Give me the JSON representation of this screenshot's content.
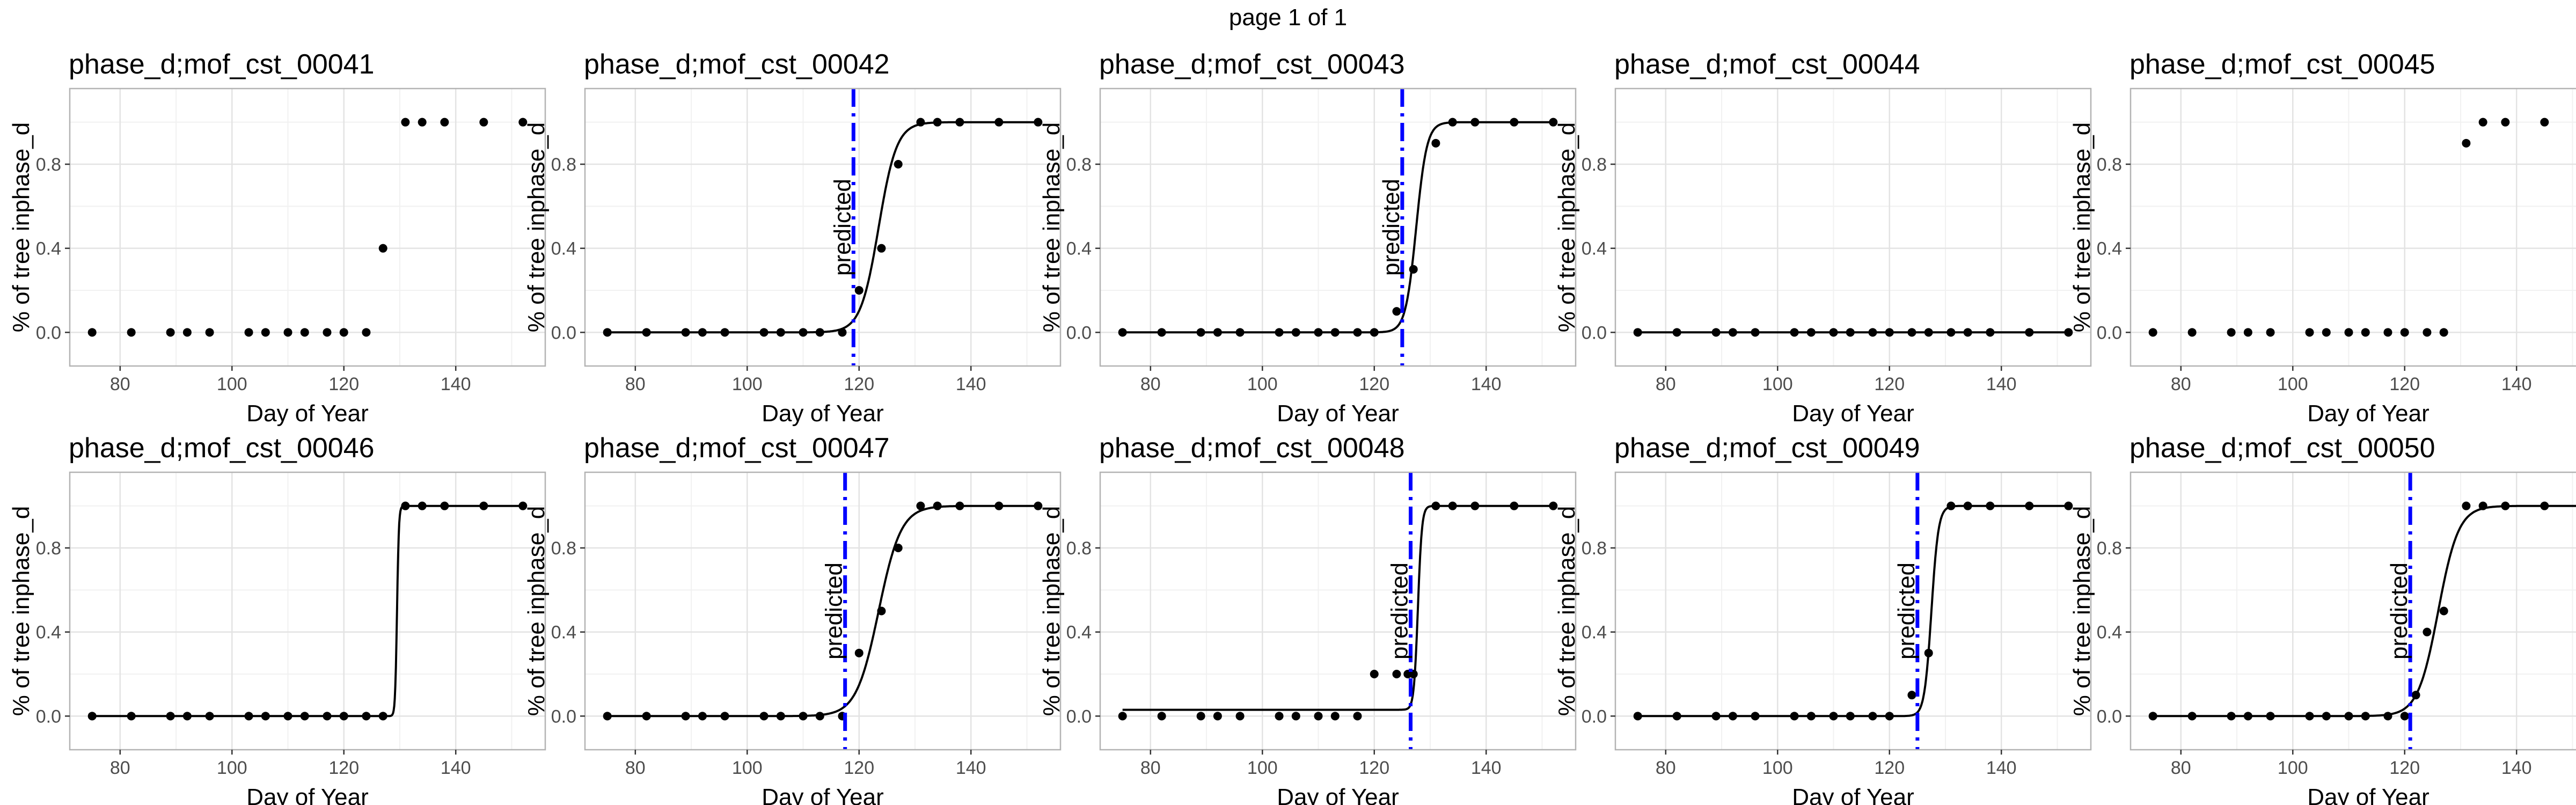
{
  "page_title": "page 1 of 1",
  "colors": {
    "predicted_line": "#0000ff",
    "curve": "#000000",
    "points": "#000000",
    "grid_major": "#e3e3e3",
    "grid_minor": "#f1f1f1",
    "panel_border": "#b3b3b3"
  },
  "chart_data": [
    {
      "type": "scatter",
      "title": "phase_d;mof_cst_00041",
      "xlabel": "Day of Year",
      "ylabel": "% of tree inphase_d",
      "xlim": [
        71,
        156
      ],
      "ylim": [
        -0.16,
        1.16
      ],
      "xticks": [
        80,
        100,
        120,
        140
      ],
      "yticks": [
        0.0,
        0.4,
        0.8
      ],
      "ytick_labels": [
        "0.0",
        "0.4",
        "0.8"
      ],
      "grid": true,
      "points": {
        "x": [
          75,
          82,
          89,
          92,
          96,
          103,
          106,
          110,
          113,
          117,
          120,
          124,
          127,
          131,
          134,
          138,
          145,
          152
        ],
        "y": [
          0,
          0,
          0,
          0,
          0,
          0,
          0,
          0,
          0,
          0,
          0,
          0,
          0.4,
          1,
          1,
          1,
          1,
          1
        ]
      },
      "curve": null,
      "predicted": null
    },
    {
      "type": "scatter",
      "title": "phase_d;mof_cst_00042",
      "xlabel": "Day of Year",
      "ylabel": "% of tree inphase_d",
      "xlim": [
        71,
        156
      ],
      "ylim": [
        -0.16,
        1.16
      ],
      "xticks": [
        80,
        100,
        120,
        140
      ],
      "yticks": [
        0.0,
        0.4,
        0.8
      ],
      "ytick_labels": [
        "0.0",
        "0.4",
        "0.8"
      ],
      "grid": true,
      "points": {
        "x": [
          75,
          82,
          89,
          92,
          96,
          103,
          106,
          110,
          113,
          117,
          120,
          124,
          127,
          131,
          134,
          138,
          145,
          152
        ],
        "y": [
          0,
          0,
          0,
          0,
          0,
          0,
          0,
          0,
          0,
          0,
          0.2,
          0.4,
          0.8,
          1,
          1,
          1,
          1,
          1
        ]
      },
      "curve": {
        "x0": 123.5,
        "k": 0.62,
        "lower": 0,
        "upper": 1,
        "from": 75,
        "to": 152
      },
      "predicted": {
        "x": 119,
        "label": "predicted"
      }
    },
    {
      "type": "scatter",
      "title": "phase_d;mof_cst_00043",
      "xlabel": "Day of Year",
      "ylabel": "% of tree inphase_d",
      "xlim": [
        71,
        156
      ],
      "ylim": [
        -0.16,
        1.16
      ],
      "xticks": [
        80,
        100,
        120,
        140
      ],
      "yticks": [
        0.0,
        0.4,
        0.8
      ],
      "ytick_labels": [
        "0.0",
        "0.4",
        "0.8"
      ],
      "grid": true,
      "points": {
        "x": [
          75,
          82,
          89,
          92,
          96,
          103,
          106,
          110,
          113,
          117,
          120,
          124,
          127,
          131,
          134,
          138,
          145,
          152
        ],
        "y": [
          0,
          0,
          0,
          0,
          0,
          0,
          0,
          0,
          0,
          0,
          0,
          0.1,
          0.3,
          0.9,
          1,
          1,
          1,
          1
        ]
      },
      "curve": {
        "x0": 127.5,
        "k": 1.05,
        "lower": 0,
        "upper": 1,
        "from": 75,
        "to": 152
      },
      "predicted": {
        "x": 125,
        "label": "predicted"
      }
    },
    {
      "type": "scatter",
      "title": "phase_d;mof_cst_00044",
      "xlabel": "Day of Year",
      "ylabel": "% of tree inphase_d",
      "xlim": [
        71,
        156
      ],
      "ylim": [
        -0.16,
        1.16
      ],
      "xticks": [
        80,
        100,
        120,
        140
      ],
      "yticks": [
        0.0,
        0.4,
        0.8
      ],
      "ytick_labels": [
        "0.0",
        "0.4",
        "0.8"
      ],
      "grid": true,
      "points": {
        "x": [
          75,
          82,
          89,
          92,
          96,
          103,
          106,
          110,
          113,
          117,
          120,
          124,
          127,
          131,
          134,
          138,
          145,
          152
        ],
        "y": [
          0,
          0,
          0,
          0,
          0,
          0,
          0,
          0,
          0,
          0,
          0,
          0,
          0,
          0,
          0,
          0,
          0,
          0
        ]
      },
      "curve": {
        "x0": 500,
        "k": 1,
        "lower": 0,
        "upper": 1,
        "from": 75,
        "to": 152
      },
      "predicted": null
    },
    {
      "type": "scatter",
      "title": "phase_d;mof_cst_00045",
      "xlabel": "Day of Year",
      "ylabel": "% of tree inphase_d",
      "xlim": [
        71,
        156
      ],
      "ylim": [
        -0.16,
        1.16
      ],
      "xticks": [
        80,
        100,
        120,
        140
      ],
      "yticks": [
        0.0,
        0.4,
        0.8
      ],
      "ytick_labels": [
        "0.0",
        "0.4",
        "0.8"
      ],
      "grid": true,
      "points": {
        "x": [
          75,
          82,
          89,
          92,
          96,
          103,
          106,
          110,
          113,
          117,
          120,
          124,
          127,
          131,
          134,
          138,
          145,
          152
        ],
        "y": [
          0,
          0,
          0,
          0,
          0,
          0,
          0,
          0,
          0,
          0,
          0,
          0,
          0,
          0.9,
          1,
          1,
          1,
          1
        ]
      },
      "curve": null,
      "predicted": null
    },
    {
      "type": "scatter",
      "title": "phase_d;mof_cst_00046",
      "xlabel": "Day of Year",
      "ylabel": "% of tree inphase_d",
      "xlim": [
        71,
        156
      ],
      "ylim": [
        -0.16,
        1.16
      ],
      "xticks": [
        80,
        100,
        120,
        140
      ],
      "yticks": [
        0.0,
        0.4,
        0.8
      ],
      "ytick_labels": [
        "0.0",
        "0.4",
        "0.8"
      ],
      "grid": true,
      "points": {
        "x": [
          75,
          82,
          89,
          92,
          96,
          103,
          106,
          110,
          113,
          117,
          120,
          124,
          127,
          131,
          134,
          138,
          145,
          152
        ],
        "y": [
          0,
          0,
          0,
          0,
          0,
          0,
          0,
          0,
          0,
          0,
          0,
          0,
          0,
          1,
          1,
          1,
          1,
          1
        ]
      },
      "curve": {
        "x0": 129.5,
        "k": 6,
        "lower": 0,
        "upper": 1,
        "from": 75,
        "to": 152
      },
      "predicted": null
    },
    {
      "type": "scatter",
      "title": "phase_d;mof_cst_00047",
      "xlabel": "Day of Year",
      "ylabel": "% of tree inphase_d",
      "xlim": [
        71,
        156
      ],
      "ylim": [
        -0.16,
        1.16
      ],
      "xticks": [
        80,
        100,
        120,
        140
      ],
      "yticks": [
        0.0,
        0.4,
        0.8
      ],
      "ytick_labels": [
        "0.0",
        "0.4",
        "0.8"
      ],
      "grid": true,
      "points": {
        "x": [
          75,
          82,
          89,
          92,
          96,
          103,
          106,
          110,
          113,
          117,
          120,
          124,
          127,
          131,
          134,
          138,
          145,
          152
        ],
        "y": [
          0,
          0,
          0,
          0,
          0,
          0,
          0,
          0,
          0,
          0,
          0.3,
          0.5,
          0.8,
          1,
          1,
          1,
          1,
          1
        ]
      },
      "curve": {
        "x0": 123.5,
        "k": 0.5,
        "lower": 0,
        "upper": 1,
        "from": 75,
        "to": 152
      },
      "predicted": {
        "x": 117.5,
        "label": "predicted"
      }
    },
    {
      "type": "scatter",
      "title": "phase_d;mof_cst_00048",
      "xlabel": "Day of Year",
      "ylabel": "% of tree inphase_d",
      "xlim": [
        71,
        156
      ],
      "ylim": [
        -0.16,
        1.16
      ],
      "xticks": [
        80,
        100,
        120,
        140
      ],
      "yticks": [
        0.0,
        0.4,
        0.8
      ],
      "ytick_labels": [
        "0.0",
        "0.4",
        "0.8"
      ],
      "grid": true,
      "points": {
        "x": [
          75,
          82,
          89,
          92,
          96,
          103,
          106,
          110,
          113,
          117,
          120,
          124,
          126,
          127,
          131,
          134,
          138,
          145,
          152
        ],
        "y": [
          0,
          0,
          0,
          0,
          0,
          0,
          0,
          0,
          0,
          0,
          0.2,
          0.2,
          0.2,
          0.2,
          1,
          1,
          1,
          1,
          1
        ]
      },
      "curve": {
        "x0": 127.8,
        "k": 2.8,
        "lower": 0.03,
        "upper": 1,
        "from": 75,
        "to": 152
      },
      "predicted": {
        "x": 126.5,
        "label": "predicted"
      }
    },
    {
      "type": "scatter",
      "title": "phase_d;mof_cst_00049",
      "xlabel": "Day of Year",
      "ylabel": "% of tree inphase_d",
      "xlim": [
        71,
        156
      ],
      "ylim": [
        -0.16,
        1.16
      ],
      "xticks": [
        80,
        100,
        120,
        140
      ],
      "yticks": [
        0.0,
        0.4,
        0.8
      ],
      "ytick_labels": [
        "0.0",
        "0.4",
        "0.8"
      ],
      "grid": true,
      "points": {
        "x": [
          75,
          82,
          89,
          92,
          96,
          103,
          106,
          110,
          113,
          117,
          120,
          124,
          127,
          131,
          134,
          138,
          145,
          152
        ],
        "y": [
          0,
          0,
          0,
          0,
          0,
          0,
          0,
          0,
          0,
          0,
          0,
          0.1,
          0.3,
          1,
          1,
          1,
          1,
          1
        ]
      },
      "curve": {
        "x0": 127.5,
        "k": 1.6,
        "lower": 0,
        "upper": 1,
        "from": 75,
        "to": 152
      },
      "predicted": {
        "x": 125,
        "label": "predicted"
      }
    },
    {
      "type": "scatter",
      "title": "phase_d;mof_cst_00050",
      "xlabel": "Day of Year",
      "ylabel": "% of tree inphase_d",
      "xlim": [
        71,
        156
      ],
      "ylim": [
        -0.16,
        1.16
      ],
      "xticks": [
        80,
        100,
        120,
        140
      ],
      "yticks": [
        0.0,
        0.4,
        0.8
      ],
      "ytick_labels": [
        "0.0",
        "0.4",
        "0.8"
      ],
      "grid": true,
      "points": {
        "x": [
          75,
          82,
          89,
          92,
          96,
          103,
          106,
          110,
          113,
          117,
          120,
          122,
          124,
          127,
          131,
          134,
          138,
          145,
          152
        ],
        "y": [
          0,
          0,
          0,
          0,
          0,
          0,
          0,
          0,
          0,
          0,
          0,
          0.1,
          0.4,
          0.5,
          1,
          1,
          1,
          1,
          1
        ]
      },
      "curve": {
        "x0": 126,
        "k": 0.55,
        "lower": 0,
        "upper": 1,
        "from": 75,
        "to": 152
      },
      "predicted": {
        "x": 121,
        "label": "predicted"
      }
    }
  ]
}
